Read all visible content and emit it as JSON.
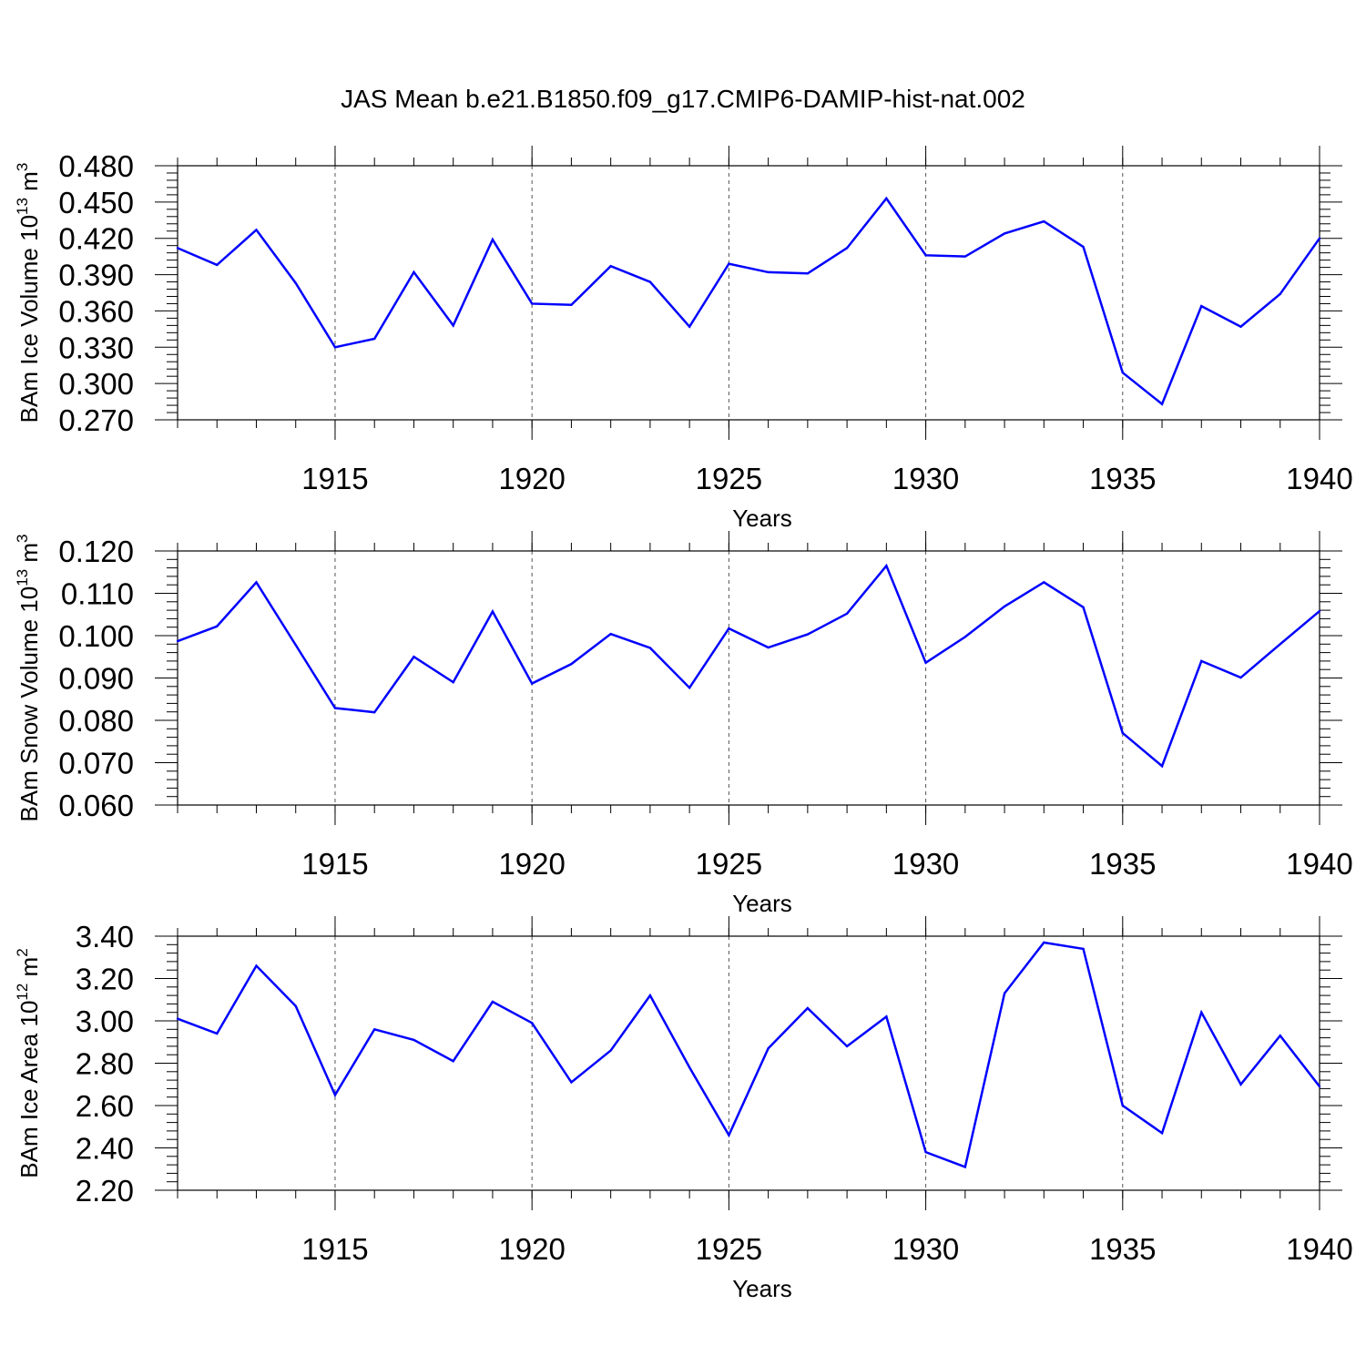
{
  "figure": {
    "title": "JAS Mean b.e21.B1850.f09_g17.CMIP6-DAMIP-hist-nat.002"
  },
  "chart_data": [
    {
      "type": "line",
      "ylabel": "BAm Ice Volume 10",
      "ylabel_exp": "13",
      "ylabel_unit": " m",
      "ylabel_unit_exp": "3",
      "xlabel": "Years",
      "xlim": [
        1911,
        1940
      ],
      "ylim": [
        0.27,
        0.48
      ],
      "yticks": [
        "0.270",
        "0.300",
        "0.330",
        "0.360",
        "0.390",
        "0.420",
        "0.450",
        "0.480"
      ],
      "xticks": [
        "1915",
        "1920",
        "1925",
        "1930",
        "1935",
        "1940"
      ],
      "grid": "dashed vertical lines at labeled years",
      "color": "#0000ff",
      "x": [
        1911,
        1912,
        1913,
        1914,
        1915,
        1916,
        1917,
        1918,
        1919,
        1920,
        1921,
        1922,
        1923,
        1924,
        1925,
        1926,
        1927,
        1928,
        1929,
        1930,
        1931,
        1932,
        1933,
        1934,
        1935,
        1936,
        1937,
        1938,
        1939,
        1940
      ],
      "values": [
        0.412,
        0.398,
        0.427,
        0.383,
        0.33,
        0.337,
        0.392,
        0.348,
        0.419,
        0.366,
        0.365,
        0.397,
        0.384,
        0.347,
        0.399,
        0.392,
        0.391,
        0.412,
        0.453,
        0.406,
        0.405,
        0.424,
        0.434,
        0.413,
        0.309,
        0.283,
        0.364,
        0.347,
        0.374,
        0.42
      ]
    },
    {
      "type": "line",
      "ylabel": "BAm Snow Volume 10",
      "ylabel_exp": "13",
      "ylabel_unit": " m",
      "ylabel_unit_exp": "3",
      "xlabel": "Years",
      "xlim": [
        1911,
        1940
      ],
      "ylim": [
        0.06,
        0.12
      ],
      "yticks": [
        "0.060",
        "0.070",
        "0.080",
        "0.090",
        "0.100",
        "0.110",
        "0.120"
      ],
      "xticks": [
        "1915",
        "1920",
        "1925",
        "1930",
        "1935",
        "1940"
      ],
      "grid": "dashed vertical lines at labeled years",
      "color": "#0000ff",
      "x": [
        1911,
        1912,
        1913,
        1914,
        1915,
        1916,
        1917,
        1918,
        1919,
        1920,
        1921,
        1922,
        1923,
        1924,
        1925,
        1926,
        1927,
        1928,
        1929,
        1930,
        1931,
        1932,
        1933,
        1934,
        1935,
        1936,
        1937,
        1938,
        1939,
        1940
      ],
      "values": [
        0.0987,
        0.1022,
        0.1126,
        0.0978,
        0.0829,
        0.0819,
        0.095,
        0.089,
        0.1057,
        0.0887,
        0.0933,
        0.1004,
        0.0971,
        0.0877,
        0.1017,
        0.0972,
        0.1003,
        0.1052,
        0.1165,
        0.0936,
        0.0997,
        0.1069,
        0.1126,
        0.1067,
        0.077,
        0.0692,
        0.094,
        0.0901,
        0.098,
        0.1058
      ]
    },
    {
      "type": "line",
      "ylabel": "BAm Ice Area 10",
      "ylabel_exp": "12",
      "ylabel_unit": " m",
      "ylabel_unit_exp": "2",
      "xlabel": "Years",
      "xlim": [
        1911,
        1940
      ],
      "ylim": [
        2.2,
        3.4
      ],
      "yticks": [
        "2.20",
        "2.40",
        "2.60",
        "2.80",
        "3.00",
        "3.20",
        "3.40"
      ],
      "xticks": [
        "1915",
        "1920",
        "1925",
        "1930",
        "1935",
        "1940"
      ],
      "grid": "dashed vertical lines at labeled years",
      "color": "#0000ff",
      "x": [
        1911,
        1912,
        1913,
        1914,
        1915,
        1916,
        1917,
        1918,
        1919,
        1920,
        1921,
        1922,
        1923,
        1924,
        1925,
        1926,
        1927,
        1928,
        1929,
        1930,
        1931,
        1932,
        1933,
        1934,
        1935,
        1936,
        1937,
        1938,
        1939,
        1940
      ],
      "values": [
        3.01,
        2.94,
        3.26,
        3.07,
        2.65,
        2.96,
        2.91,
        2.81,
        3.09,
        2.99,
        2.71,
        2.86,
        3.12,
        2.78,
        2.46,
        2.87,
        3.06,
        2.88,
        3.02,
        2.38,
        2.31,
        3.13,
        3.37,
        3.34,
        2.6,
        2.47,
        3.04,
        2.7,
        2.93,
        2.69
      ]
    }
  ]
}
